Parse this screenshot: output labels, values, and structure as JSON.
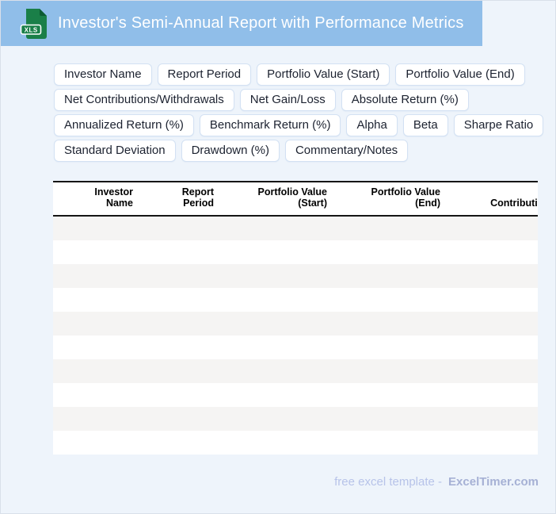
{
  "header": {
    "title": "Investor's Semi-Annual Report with Performance Metrics",
    "file_badge": "XLS"
  },
  "tag_rows": [
    [
      "Investor Name",
      "Report Period",
      "Portfolio Value (Start)",
      "Portfolio Value (End)"
    ],
    [
      "Net Contributions/Withdrawals",
      "Net Gain/Loss",
      "Absolute Return (%)"
    ],
    [
      "Annualized Return (%)",
      "Benchmark Return (%)",
      "Alpha",
      "Beta",
      "Sharpe Ratio"
    ],
    [
      "Standard Deviation",
      "Drawdown (%)",
      "Commentary/Notes"
    ]
  ],
  "table": {
    "column_headers": [
      [
        "Investor",
        "Name"
      ],
      [
        "Report",
        "Period"
      ],
      [
        "Portfolio Value",
        "(Start)"
      ],
      [
        "Portfolio Value",
        "(End)"
      ],
      [
        "Contributions"
      ]
    ],
    "empty_row_count": 10
  },
  "footer": {
    "text": "free excel template -",
    "brand": "ExcelTimer.com"
  },
  "colors": {
    "header_bg": "#90bee9",
    "page_bg": "#eef4fb",
    "page_border": "#d9e0ea",
    "icon_green": "#1a7f48",
    "icon_green_dark": "#0d5c33",
    "tag_border": "#d3e1f3",
    "stripe": "#f5f4f3",
    "footer_text": "#b7c3e9",
    "footer_brand": "#a6b1d5"
  }
}
